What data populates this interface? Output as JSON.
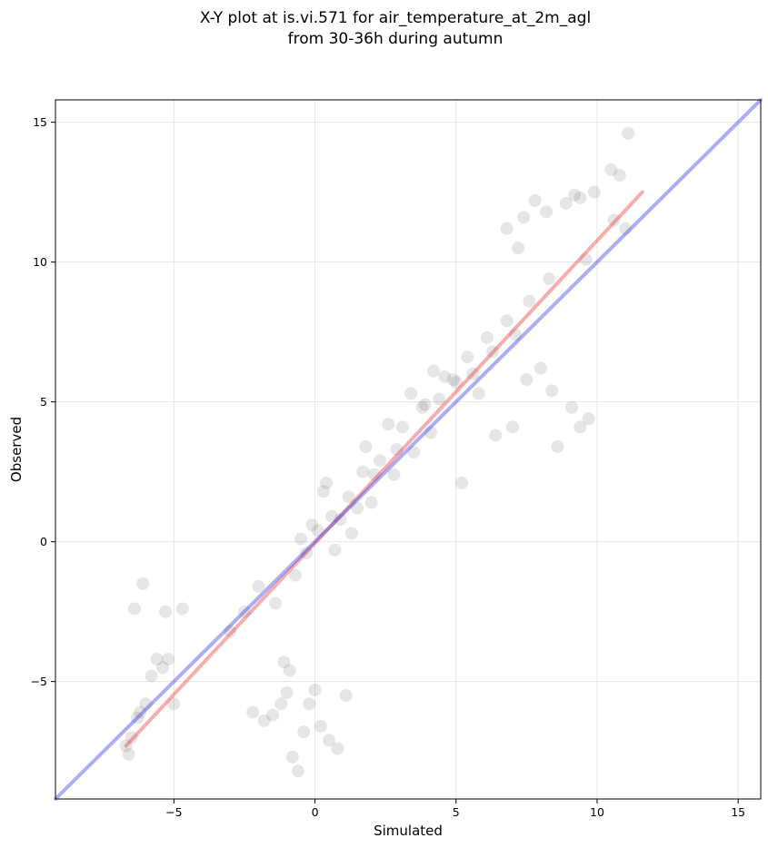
{
  "chart_data": {
    "type": "scatter",
    "title_lines": [
      "X-Y plot at is.vi.571 for air_temperature_at_2m_agl",
      "from 30-36h during autumn"
    ],
    "xlabel": "Simulated",
    "ylabel": "Observed",
    "xlim": [
      -9.2,
      15.8
    ],
    "ylim": [
      -9.2,
      15.8
    ],
    "xticks": [
      -5,
      0,
      5,
      10,
      15
    ],
    "yticks": [
      -5,
      0,
      5,
      10,
      15
    ],
    "xtick_labels": [
      "−5",
      "0",
      "5",
      "10",
      "15"
    ],
    "ytick_labels": [
      "−5",
      "0",
      "5",
      "10",
      "15"
    ],
    "grid": true,
    "point_color": "#555555",
    "point_opacity": 0.15,
    "series": [
      {
        "kind": "points",
        "x": [
          11.1,
          10.5,
          10.8,
          9.9,
          9.4,
          9.2,
          8.9,
          7.8,
          7.4,
          6.8,
          8.2,
          7.2,
          9.6,
          11.0,
          10.6,
          -6.7,
          -6.6,
          -6.5,
          -6.3,
          -6.2,
          -6.0,
          -5.8,
          -5.6,
          -5.4,
          -5.2,
          -5.0,
          -4.7,
          -6.4,
          -6.1,
          -5.3,
          -2.2,
          -1.8,
          -1.5,
          -1.2,
          -1.0,
          -0.8,
          -0.6,
          -0.4,
          -0.2,
          0.0,
          0.2,
          0.5,
          0.8,
          1.1,
          -1.1,
          -0.9,
          9.7,
          9.4,
          9.1,
          8.6,
          8.4,
          8.0,
          7.5,
          7.0,
          6.4,
          5.2,
          1.8,
          2.6,
          3.4,
          3.8,
          4.2,
          4.6,
          2.1,
          1.5,
          0.9,
          0.4,
          2.9,
          3.1,
          4.9,
          5.4,
          6.1,
          6.8,
          7.6,
          8.3,
          -3.0,
          -2.5,
          -2.0,
          -1.4,
          -0.7,
          -0.3,
          0.1,
          0.6,
          1.2,
          1.7,
          2.3,
          3.9,
          4.4,
          5.0,
          5.6,
          6.3,
          7.1,
          5.8,
          4.1,
          3.5,
          2.8,
          2.0,
          1.3,
          0.7,
          0.3,
          -0.1,
          -0.5
        ],
        "y": [
          14.6,
          13.3,
          13.1,
          12.5,
          12.3,
          12.4,
          12.1,
          12.2,
          11.6,
          11.2,
          11.8,
          10.5,
          10.1,
          11.2,
          11.5,
          -7.3,
          -7.6,
          -7.0,
          -6.3,
          -6.1,
          -5.8,
          -4.8,
          -4.2,
          -4.5,
          -4.2,
          -5.8,
          -2.4,
          -2.4,
          -1.5,
          -2.5,
          -6.1,
          -6.4,
          -6.2,
          -5.8,
          -5.4,
          -7.7,
          -8.2,
          -6.8,
          -5.8,
          -5.3,
          -6.6,
          -7.1,
          -7.4,
          -5.5,
          -4.3,
          -4.6,
          4.4,
          4.1,
          4.8,
          3.4,
          5.4,
          6.2,
          5.8,
          4.1,
          3.8,
          2.1,
          3.4,
          4.2,
          5.3,
          4.8,
          6.1,
          5.9,
          2.4,
          1.2,
          0.8,
          2.1,
          3.3,
          4.1,
          5.8,
          6.6,
          7.3,
          7.9,
          8.6,
          9.4,
          -3.2,
          -2.5,
          -1.6,
          -2.2,
          -1.2,
          -0.4,
          0.4,
          0.9,
          1.6,
          2.5,
          2.9,
          4.9,
          5.1,
          5.7,
          6.0,
          6.8,
          7.4,
          5.3,
          3.9,
          3.2,
          2.4,
          1.4,
          0.3,
          -0.3,
          1.8,
          0.6,
          0.1
        ]
      },
      {
        "kind": "line",
        "color": "#e63333",
        "opacity": 0.4,
        "x": [
          -6.7,
          11.6
        ],
        "y": [
          -7.3,
          12.5
        ]
      },
      {
        "kind": "line",
        "color": "#3333e6",
        "opacity": 0.4,
        "x": [
          -9.2,
          15.8
        ],
        "y": [
          -9.2,
          15.8
        ]
      }
    ]
  }
}
